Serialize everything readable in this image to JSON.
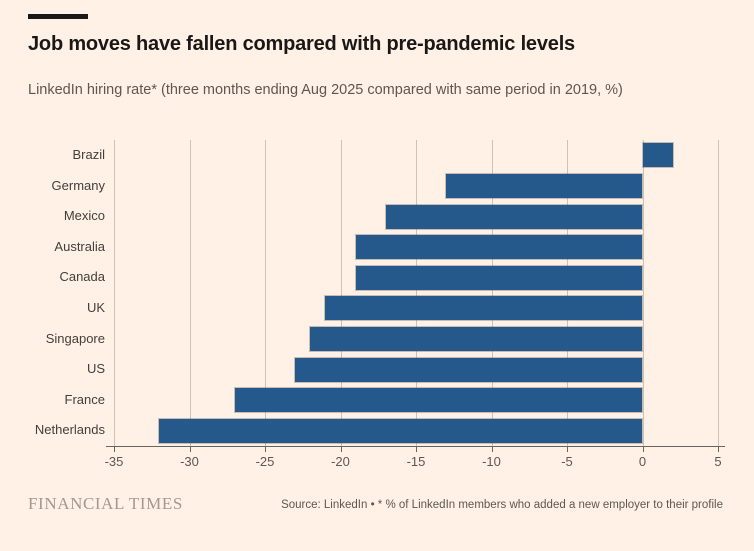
{
  "header": {
    "title": "Job moves have fallen compared with pre-pandemic levels",
    "subtitle": "LinkedIn hiring rate* (three months ending Aug 2025 compared with same period in 2019, %)"
  },
  "chart_data": {
    "type": "bar",
    "orientation": "horizontal",
    "categories": [
      "Brazil",
      "Germany",
      "Mexico",
      "Australia",
      "Canada",
      "UK",
      "Singapore",
      "US",
      "France",
      "Netherlands"
    ],
    "values": [
      2,
      -13,
      -17,
      -19,
      -19,
      -21,
      -22,
      -23,
      -27,
      -32
    ],
    "title": "Job moves have fallen compared with pre-pandemic levels",
    "xlabel": "",
    "ylabel": "",
    "xlim": [
      -35,
      5
    ],
    "xticks": [
      -35,
      -30,
      -25,
      -20,
      -15,
      -10,
      -5,
      0,
      5
    ],
    "grid": true,
    "legend": false,
    "bar_color": "#25598C",
    "background_color": "#FFF1E5",
    "gridline_color": "#CCC3B8"
  },
  "footer": {
    "brand": "FINANCIAL TIMES",
    "source": "Source: LinkedIn • * % of LinkedIn members who added a new employer to their profile"
  }
}
